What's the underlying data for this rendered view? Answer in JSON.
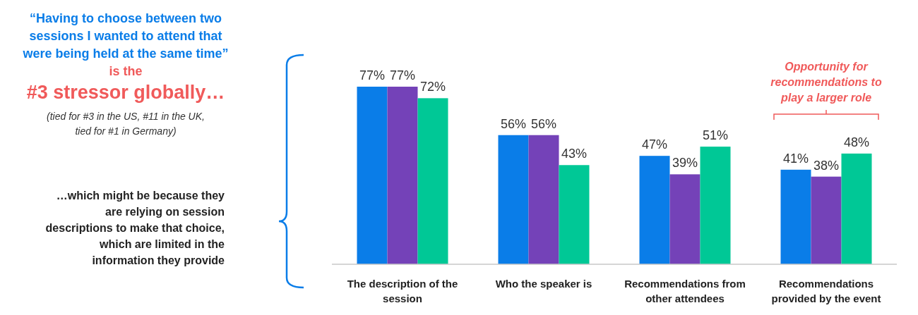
{
  "chart_data": {
    "type": "bar",
    "categories": [
      "The description of the session",
      "Who the speaker is",
      "Recommendations from other attendees",
      "Recommendations provided by the event"
    ],
    "series": [
      {
        "color": "#0a7de8",
        "values": [
          77,
          56,
          47,
          41
        ],
        "value_labels": [
          "77%",
          "56%",
          "47%",
          "41%"
        ]
      },
      {
        "color": "#7442b8",
        "values": [
          77,
          56,
          39,
          38
        ],
        "value_labels": [
          "77%",
          "56%",
          "39%",
          "38%"
        ]
      },
      {
        "color": "#00c896",
        "values": [
          72,
          43,
          51,
          48
        ],
        "value_labels": [
          "72%",
          "43%",
          "51%",
          "48%"
        ]
      }
    ],
    "annotations": [
      "“Having to choose between two sessions I wanted to attend that were being held at the same time”",
      "is the",
      "#3 stressor globally…",
      "(tied for #3 in the US, #11 in the UK, tied for #1 in Germany)",
      "…which might be because they are relying on session descriptions to make that choice, which are limited in the information they provide",
      "Opportunity for recommendations to play a larger role"
    ]
  }
}
